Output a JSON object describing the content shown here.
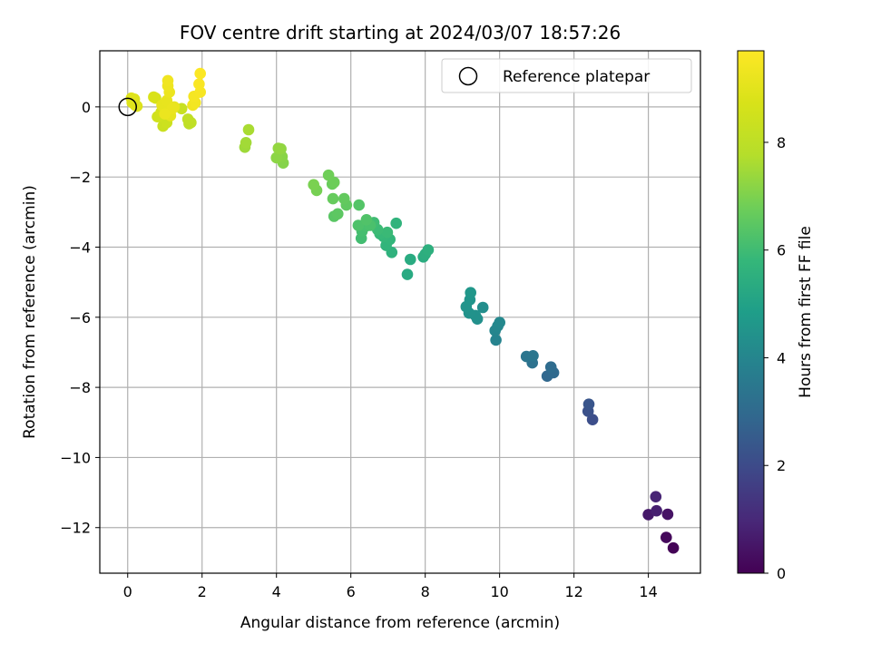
{
  "chart_data": {
    "type": "scatter",
    "title": "FOV centre drift starting at 2024/03/07 18:57:26",
    "xlabel": "Angular distance from reference (arcmin)",
    "ylabel": "Rotation from reference (arcmin)",
    "xlim": [
      -0.75,
      15.4
    ],
    "ylim": [
      -13.3,
      1.6
    ],
    "xticks": [
      0,
      2,
      4,
      6,
      8,
      10,
      12,
      14
    ],
    "yticks": [
      0,
      -2,
      -4,
      -6,
      -8,
      -10,
      -12
    ],
    "grid": true,
    "legend": {
      "position": "top-right",
      "entries": [
        "Reference platepar"
      ]
    },
    "reference_point": {
      "x": 0,
      "y": 0
    },
    "colorbar": {
      "label": "Hours from first FF file",
      "range": [
        0,
        9.7
      ],
      "ticks": [
        0,
        2,
        4,
        6,
        8
      ],
      "colormap": "viridis"
    },
    "points": [
      {
        "x": 14.67,
        "y": -12.58,
        "c": 0.05
      },
      {
        "x": 14.48,
        "y": -12.28,
        "c": 0.2
      },
      {
        "x": 14.52,
        "y": -11.62,
        "c": 0.45
      },
      {
        "x": 14.0,
        "y": -11.63,
        "c": 0.6
      },
      {
        "x": 14.22,
        "y": -11.52,
        "c": 0.75
      },
      {
        "x": 14.2,
        "y": -11.12,
        "c": 0.9
      },
      {
        "x": 12.5,
        "y": -8.92,
        "c": 2.1
      },
      {
        "x": 12.38,
        "y": -8.68,
        "c": 2.2
      },
      {
        "x": 12.4,
        "y": -8.48,
        "c": 2.3
      },
      {
        "x": 11.28,
        "y": -7.68,
        "c": 2.9
      },
      {
        "x": 11.45,
        "y": -7.58,
        "c": 3.0
      },
      {
        "x": 11.38,
        "y": -7.42,
        "c": 3.05
      },
      {
        "x": 10.88,
        "y": -7.3,
        "c": 3.3
      },
      {
        "x": 10.72,
        "y": -7.12,
        "c": 3.4
      },
      {
        "x": 10.9,
        "y": -7.1,
        "c": 3.45
      },
      {
        "x": 9.9,
        "y": -6.65,
        "c": 3.9
      },
      {
        "x": 9.88,
        "y": -6.38,
        "c": 4.0
      },
      {
        "x": 9.95,
        "y": -6.25,
        "c": 4.05
      },
      {
        "x": 10.0,
        "y": -6.15,
        "c": 4.1
      },
      {
        "x": 9.55,
        "y": -5.72,
        "c": 4.3
      },
      {
        "x": 9.4,
        "y": -6.05,
        "c": 4.35
      },
      {
        "x": 9.35,
        "y": -5.95,
        "c": 4.4
      },
      {
        "x": 9.18,
        "y": -5.88,
        "c": 4.45
      },
      {
        "x": 9.1,
        "y": -5.7,
        "c": 4.5
      },
      {
        "x": 9.2,
        "y": -5.5,
        "c": 4.55
      },
      {
        "x": 9.22,
        "y": -5.3,
        "c": 4.6
      },
      {
        "x": 7.52,
        "y": -4.78,
        "c": 5.3
      },
      {
        "x": 7.6,
        "y": -4.35,
        "c": 5.35
      },
      {
        "x": 7.95,
        "y": -4.28,
        "c": 5.4
      },
      {
        "x": 8.0,
        "y": -4.2,
        "c": 5.45
      },
      {
        "x": 8.08,
        "y": -4.08,
        "c": 5.5
      },
      {
        "x": 7.1,
        "y": -4.15,
        "c": 5.6
      },
      {
        "x": 7.22,
        "y": -3.32,
        "c": 5.65
      },
      {
        "x": 6.95,
        "y": -3.95,
        "c": 5.7
      },
      {
        "x": 7.05,
        "y": -3.78,
        "c": 5.75
      },
      {
        "x": 6.88,
        "y": -3.7,
        "c": 5.8
      },
      {
        "x": 6.78,
        "y": -3.62,
        "c": 5.85
      },
      {
        "x": 6.98,
        "y": -3.58,
        "c": 5.9
      },
      {
        "x": 6.72,
        "y": -3.5,
        "c": 5.95
      },
      {
        "x": 6.62,
        "y": -3.3,
        "c": 6.0
      },
      {
        "x": 6.28,
        "y": -3.75,
        "c": 6.05
      },
      {
        "x": 6.3,
        "y": -3.55,
        "c": 6.1
      },
      {
        "x": 6.4,
        "y": -3.4,
        "c": 6.15
      },
      {
        "x": 6.52,
        "y": -3.38,
        "c": 6.2
      },
      {
        "x": 6.2,
        "y": -3.38,
        "c": 6.25
      },
      {
        "x": 6.42,
        "y": -3.22,
        "c": 6.3
      },
      {
        "x": 6.22,
        "y": -2.8,
        "c": 6.35
      },
      {
        "x": 5.55,
        "y": -3.12,
        "c": 6.45
      },
      {
        "x": 5.65,
        "y": -3.05,
        "c": 6.5
      },
      {
        "x": 5.88,
        "y": -2.8,
        "c": 6.55
      },
      {
        "x": 5.82,
        "y": -2.62,
        "c": 6.6
      },
      {
        "x": 5.52,
        "y": -2.62,
        "c": 6.65
      },
      {
        "x": 5.5,
        "y": -2.2,
        "c": 6.7
      },
      {
        "x": 5.55,
        "y": -2.15,
        "c": 6.75
      },
      {
        "x": 5.4,
        "y": -1.95,
        "c": 6.8
      },
      {
        "x": 5.08,
        "y": -2.38,
        "c": 6.9
      },
      {
        "x": 5.0,
        "y": -2.22,
        "c": 6.95
      },
      {
        "x": 4.18,
        "y": -1.6,
        "c": 7.1
      },
      {
        "x": 4.15,
        "y": -1.42,
        "c": 7.15
      },
      {
        "x": 4.0,
        "y": -1.45,
        "c": 7.2
      },
      {
        "x": 4.12,
        "y": -1.2,
        "c": 7.25
      },
      {
        "x": 4.05,
        "y": -1.18,
        "c": 7.3
      },
      {
        "x": 3.15,
        "y": -1.15,
        "c": 7.45
      },
      {
        "x": 3.18,
        "y": -1.02,
        "c": 7.5
      },
      {
        "x": 3.25,
        "y": -0.65,
        "c": 7.6
      },
      {
        "x": 1.65,
        "y": -0.48,
        "c": 8.0
      },
      {
        "x": 1.7,
        "y": -0.45,
        "c": 8.05
      },
      {
        "x": 1.62,
        "y": -0.35,
        "c": 8.1
      },
      {
        "x": 1.45,
        "y": -0.05,
        "c": 8.3
      },
      {
        "x": 0.95,
        "y": -0.55,
        "c": 8.35
      },
      {
        "x": 1.05,
        "y": -0.45,
        "c": 8.4
      },
      {
        "x": 0.8,
        "y": -0.28,
        "c": 8.5
      },
      {
        "x": 0.9,
        "y": -0.15,
        "c": 8.6
      },
      {
        "x": 0.75,
        "y": 0.25,
        "c": 8.7
      },
      {
        "x": 0.7,
        "y": 0.28,
        "c": 8.75
      },
      {
        "x": 0.25,
        "y": 0.02,
        "c": 8.8
      },
      {
        "x": 0.18,
        "y": 0.22,
        "c": 8.85
      },
      {
        "x": 0.12,
        "y": 0.12,
        "c": 8.9
      },
      {
        "x": 0.1,
        "y": 0.25,
        "c": 8.92
      },
      {
        "x": 0.2,
        "y": 0.05,
        "c": 8.95
      },
      {
        "x": 1.0,
        "y": 0.02,
        "c": 9.0
      },
      {
        "x": 1.1,
        "y": -0.1,
        "c": 9.05
      },
      {
        "x": 1.15,
        "y": -0.25,
        "c": 9.1
      },
      {
        "x": 0.92,
        "y": 0.05,
        "c": 9.12
      },
      {
        "x": 1.05,
        "y": 0.18,
        "c": 9.15
      },
      {
        "x": 1.25,
        "y": 0.0,
        "c": 9.18
      },
      {
        "x": 1.2,
        "y": -0.05,
        "c": 9.2
      },
      {
        "x": 1.0,
        "y": -0.2,
        "c": 9.22
      },
      {
        "x": 1.12,
        "y": 0.42,
        "c": 9.25
      },
      {
        "x": 1.08,
        "y": 0.6,
        "c": 9.3
      },
      {
        "x": 1.08,
        "y": 0.75,
        "c": 9.35
      },
      {
        "x": 1.75,
        "y": 0.05,
        "c": 9.4
      },
      {
        "x": 1.82,
        "y": 0.12,
        "c": 9.45
      },
      {
        "x": 1.78,
        "y": 0.3,
        "c": 9.5
      },
      {
        "x": 1.95,
        "y": 0.42,
        "c": 9.55
      },
      {
        "x": 1.92,
        "y": 0.65,
        "c": 9.6
      },
      {
        "x": 1.95,
        "y": 0.95,
        "c": 9.65
      }
    ]
  }
}
